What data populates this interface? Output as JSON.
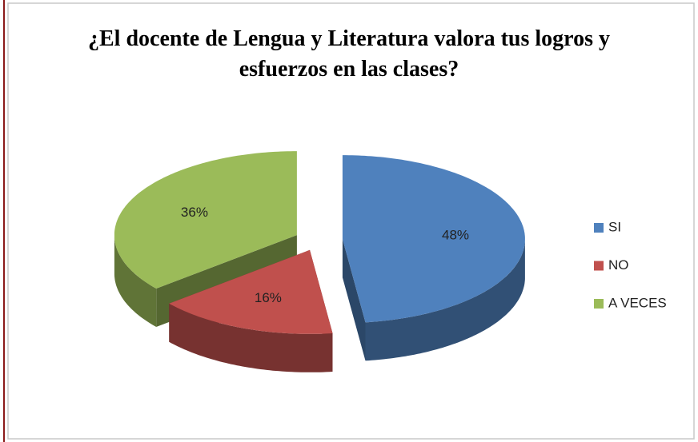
{
  "chart_data": {
    "type": "pie3d",
    "title": "¿El docente de Lengua y Literatura valora tus logros y esfuerzos en las clases?",
    "categories": [
      "SI",
      "NO",
      "A VECES"
    ],
    "values": [
      48,
      16,
      36
    ],
    "value_labels": [
      "48%",
      "16%",
      "36%"
    ],
    "colors": [
      "#4f81bd",
      "#c0504d",
      "#9bbb59"
    ],
    "legend": "right"
  }
}
